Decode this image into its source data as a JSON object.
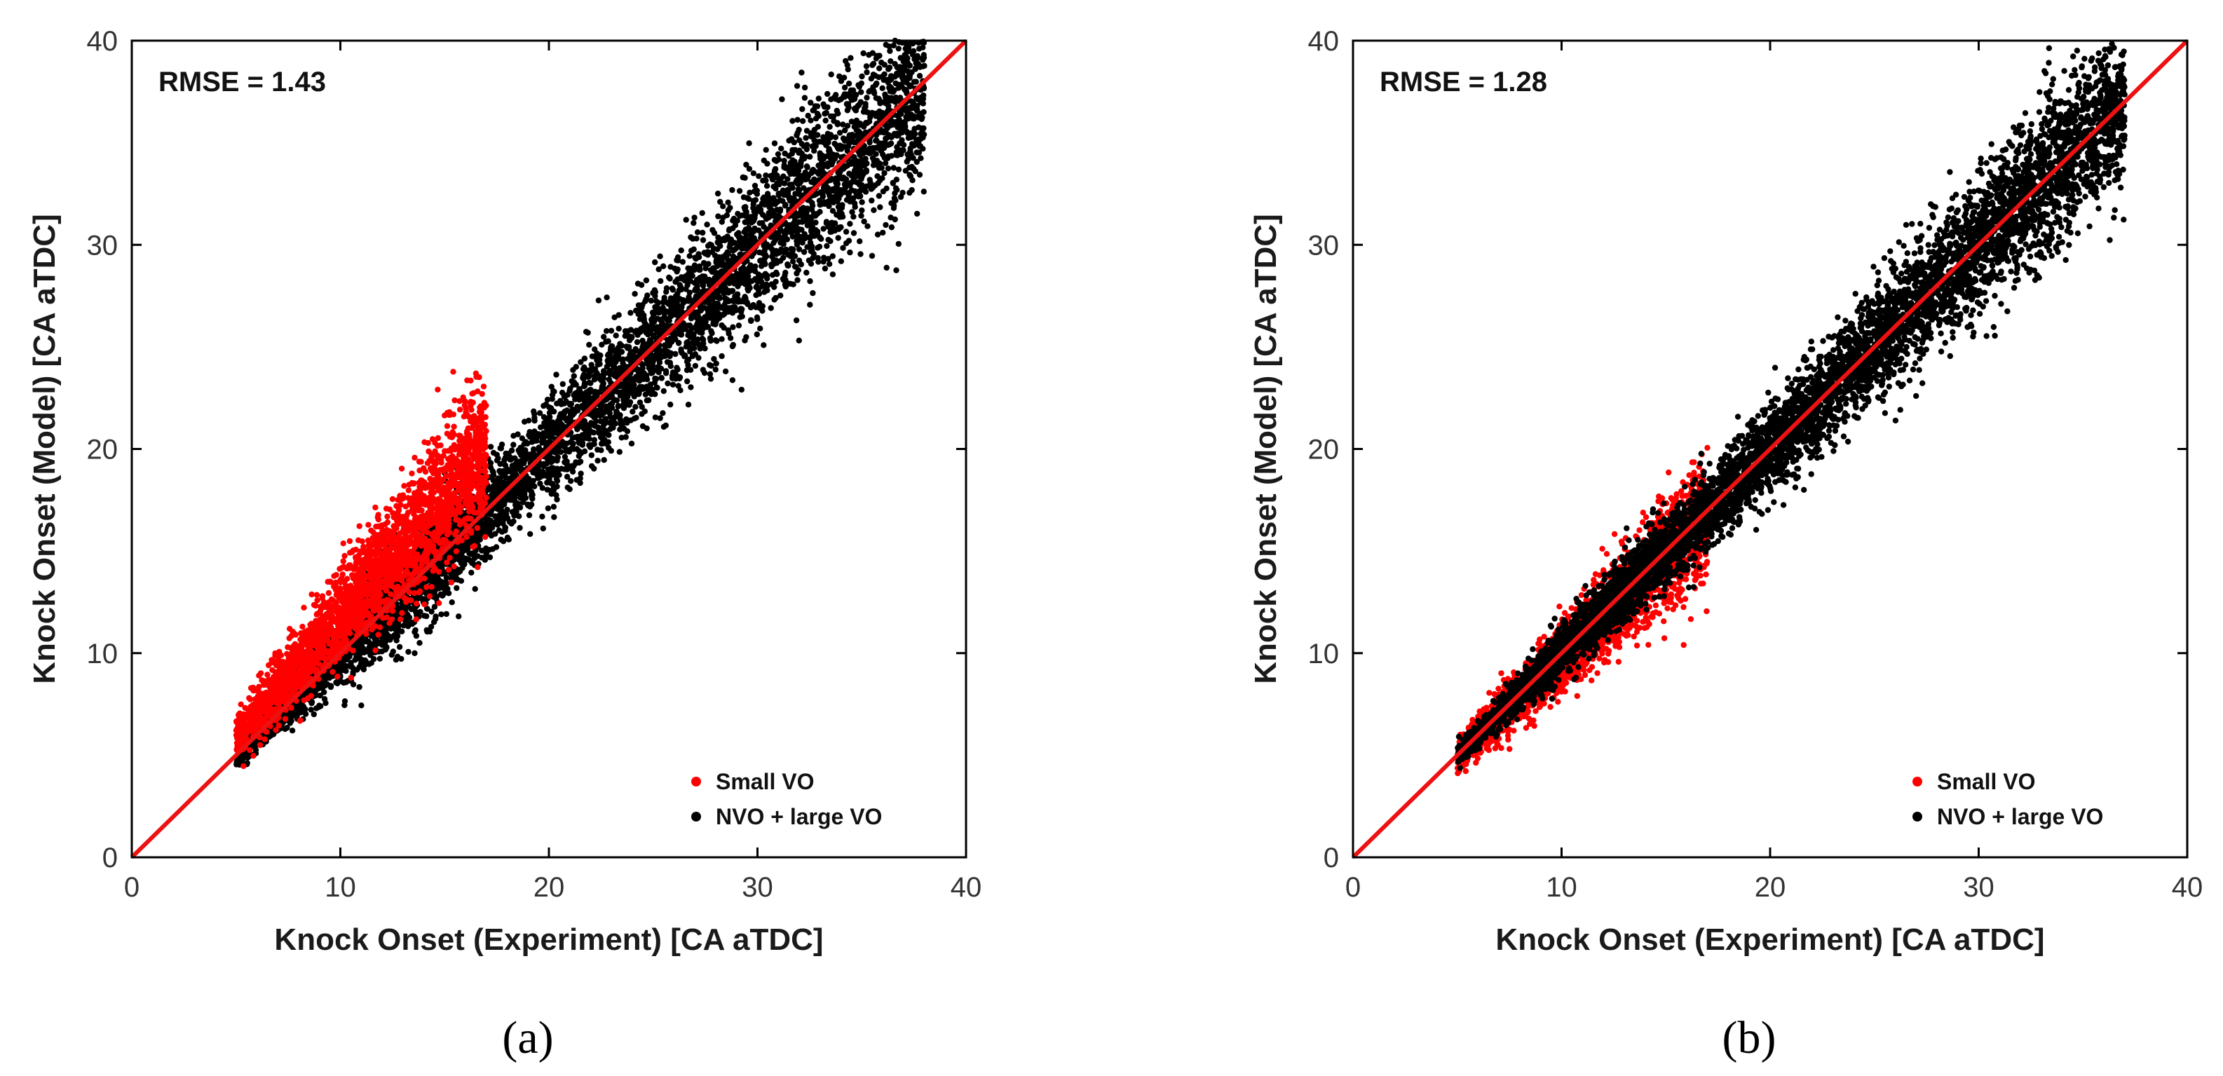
{
  "chart_data": [
    {
      "type": "scatter",
      "panel_label": "(a)",
      "annotation": "RMSE = 1.43",
      "xlabel": "Knock Onset (Experiment) [CA aTDC]",
      "ylabel": "Knock Onset (Model) [CA aTDC]",
      "xlim": [
        0,
        40
      ],
      "ylim": [
        0,
        40
      ],
      "xticks": [
        0,
        10,
        20,
        30,
        40
      ],
      "yticks": [
        0,
        10,
        20,
        30,
        40
      ],
      "legend": {
        "position": "bottom-right",
        "entries": [
          "Small VO",
          "NVO + large VO"
        ]
      },
      "reference_line": {
        "label": "y = x",
        "color": "#ee1111"
      },
      "series": [
        {
          "name": "NVO + large VO",
          "color": "#000000",
          "clusters": [
            {
              "x_range": [
                5,
                38
              ],
              "ratio_mean": 1.0,
              "ratio_sd": 0.065,
              "count": 5200
            },
            {
              "x_range": [
                7,
                16
              ],
              "ratio_mean": 1.0,
              "ratio_sd": 0.09,
              "count": 900
            }
          ]
        },
        {
          "name": "Small VO",
          "color": "#ff0000",
          "clusters": [
            {
              "x_range": [
                5,
                17
              ],
              "ratio_mean": 1.18,
              "ratio_sd": 0.11,
              "count": 2600
            }
          ]
        }
      ]
    },
    {
      "type": "scatter",
      "panel_label": "(b)",
      "annotation": "RMSE = 1.28",
      "xlabel": "Knock Onset (Experiment) [CA aTDC]",
      "ylabel": "Knock Onset (Model) [CA aTDC]",
      "xlim": [
        0,
        40
      ],
      "ylim": [
        0,
        40
      ],
      "xticks": [
        0,
        10,
        20,
        30,
        40
      ],
      "yticks": [
        0,
        10,
        20,
        30,
        40
      ],
      "legend": {
        "position": "bottom-right",
        "entries": [
          "Small VO",
          "NVO + large VO"
        ]
      },
      "reference_line": {
        "label": "y = x",
        "color": "#ee1111"
      },
      "series": [
        {
          "name": "Small VO",
          "color": "#ff0000",
          "clusters": [
            {
              "x_range": [
                5,
                17
              ],
              "ratio_mean": 0.98,
              "ratio_sd": 0.09,
              "count": 2300
            }
          ]
        },
        {
          "name": "NVO + large VO",
          "color": "#000000",
          "clusters": [
            {
              "x_range": [
                5,
                37
              ],
              "ratio_mean": 1.0,
              "ratio_sd": 0.055,
              "count": 5800
            },
            {
              "x_range": [
                8,
                15
              ],
              "ratio_mean": 1.02,
              "ratio_sd": 0.06,
              "count": 700
            }
          ]
        }
      ]
    }
  ]
}
